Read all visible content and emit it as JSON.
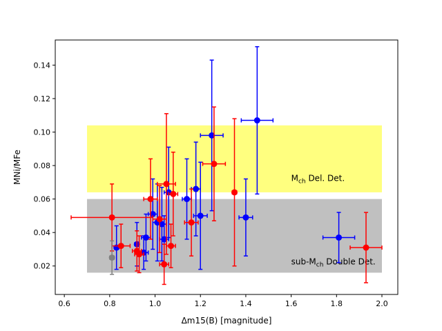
{
  "chart_data": {
    "type": "scatter",
    "title": "",
    "xlabel": "Δm15(B) [magnitude]",
    "ylabel": "MNi/MFe",
    "xlim": [
      0.56,
      2.07
    ],
    "ylim": [
      0.003,
      0.155
    ],
    "x_ticks": [
      0.6,
      0.8,
      1.0,
      1.2,
      1.4,
      1.6,
      1.8,
      2.0
    ],
    "x_tick_labels": [
      "0.6",
      "0.8",
      "1.0",
      "1.2",
      "1.4",
      "1.6",
      "1.8",
      "2.0"
    ],
    "y_ticks": [
      0.02,
      0.04,
      0.06,
      0.08,
      0.1,
      0.12,
      0.14
    ],
    "y_tick_labels": [
      "0.02",
      "0.04",
      "0.06",
      "0.08",
      "0.10",
      "0.12",
      "0.14"
    ],
    "grid": false,
    "bands": [
      {
        "x0": 0.7,
        "x1": 2.0,
        "y0": 0.064,
        "y1": 0.104,
        "color": "#ffff7f",
        "label": "Mch Del. Det.",
        "label_main": "M",
        "label_sub": "ch",
        "label_rest": " Del. Det.",
        "label_x": 1.6,
        "label_y": 0.07
      },
      {
        "x0": 0.7,
        "x1": 2.0,
        "y0": 0.016,
        "y1": 0.06,
        "color": "#c0c0c0",
        "label": "sub-Mch Double Det.",
        "label_main": "sub-M",
        "label_sub": "ch",
        "label_rest": " Double Det.",
        "label_x": 1.6,
        "label_y": 0.02
      }
    ],
    "series": [
      {
        "color": "#0000ff",
        "points": [
          {
            "x": 0.83,
            "y": 0.031,
            "xerr": 0.01,
            "yerr": 0.013
          },
          {
            "x": 0.92,
            "y": 0.033,
            "xerr": 0.01,
            "yerr": 0.013
          },
          {
            "x": 0.95,
            "y": 0.028,
            "xerr": 0.02,
            "yerr": 0.01
          },
          {
            "x": 0.96,
            "y": 0.037,
            "xerr": 0.02,
            "yerr": 0.014
          },
          {
            "x": 0.99,
            "y": 0.051,
            "xerr": 0.02,
            "yerr": 0.021
          },
          {
            "x": 1.01,
            "y": 0.046,
            "xerr": 0.02,
            "yerr": 0.023
          },
          {
            "x": 1.03,
            "y": 0.045,
            "xerr": 0.02,
            "yerr": 0.022
          },
          {
            "x": 1.04,
            "y": 0.036,
            "xerr": 0.02,
            "yerr": 0.014
          },
          {
            "x": 1.06,
            "y": 0.064,
            "xerr": 0.02,
            "yerr": 0.027
          },
          {
            "x": 1.14,
            "y": 0.06,
            "xerr": 0.02,
            "yerr": 0.024
          },
          {
            "x": 1.18,
            "y": 0.066,
            "xerr": 0.02,
            "yerr": 0.028
          },
          {
            "x": 1.2,
            "y": 0.05,
            "xerr": 0.03,
            "yerr": 0.032
          },
          {
            "x": 1.25,
            "y": 0.098,
            "xerr": 0.05,
            "yerr": 0.045
          },
          {
            "x": 1.4,
            "y": 0.049,
            "xerr": 0.03,
            "yerr": 0.023
          },
          {
            "x": 1.45,
            "y": 0.107,
            "xerr": 0.07,
            "yerr": 0.044
          },
          {
            "x": 1.81,
            "y": 0.037,
            "xerr": 0.07,
            "yerr": 0.015
          }
        ]
      },
      {
        "color": "#ff0000",
        "points": [
          {
            "x": 0.81,
            "y": 0.049,
            "xerr": 0.18,
            "yerr": 0.02
          },
          {
            "x": 0.85,
            "y": 0.032,
            "xerr": 0.04,
            "yerr": 0.013
          },
          {
            "x": 0.92,
            "y": 0.029,
            "xerr": 0.02,
            "yerr": 0.012
          },
          {
            "x": 0.93,
            "y": 0.027,
            "xerr": 0.02,
            "yerr": 0.011
          },
          {
            "x": 0.98,
            "y": 0.06,
            "xerr": 0.03,
            "yerr": 0.024
          },
          {
            "x": 1.02,
            "y": 0.048,
            "xerr": 0.03,
            "yerr": 0.02
          },
          {
            "x": 1.04,
            "y": 0.021,
            "xerr": 0.02,
            "yerr": 0.012
          },
          {
            "x": 1.05,
            "y": 0.069,
            "xerr": 0.04,
            "yerr": 0.042
          },
          {
            "x": 1.07,
            "y": 0.032,
            "xerr": 0.02,
            "yerr": 0.013
          },
          {
            "x": 1.08,
            "y": 0.063,
            "xerr": 0.02,
            "yerr": 0.025
          },
          {
            "x": 1.16,
            "y": 0.046,
            "xerr": 0.03,
            "yerr": 0.02
          },
          {
            "x": 1.26,
            "y": 0.081,
            "xerr": 0.05,
            "yerr": 0.034
          },
          {
            "x": 1.35,
            "y": 0.064,
            "xerr": 0.01,
            "yerr": 0.044
          },
          {
            "x": 1.93,
            "y": 0.031,
            "xerr": 0.07,
            "yerr": 0.021
          }
        ]
      },
      {
        "color": "#808080",
        "points": [
          {
            "x": 0.81,
            "y": 0.025,
            "xerr": 0.01,
            "yerr": 0.01
          }
        ]
      }
    ]
  }
}
